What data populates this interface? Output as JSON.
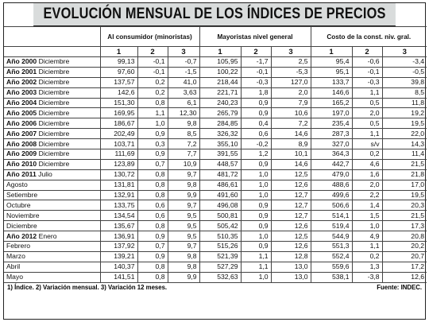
{
  "title": "EVOLUCIÓN MENSUAL DE LOS ÍNDICES DE PRECIOS",
  "groups": [
    "Al consumidor (minoristas)",
    "Mayoristas nivel general",
    "Costo de la const. niv. gral."
  ],
  "subheaders": [
    "1",
    "2",
    "3",
    "1",
    "2",
    "3",
    "1",
    "2",
    "3"
  ],
  "rows": [
    {
      "year": "Año 2000",
      "period": "Diciembre",
      "values": [
        "99,13",
        "-0,1",
        "-0,7",
        "105,95",
        "-1,7",
        "2,5",
        "95,4",
        "-0,6",
        "-3,4"
      ]
    },
    {
      "year": "Año 2001",
      "period": "Diciembre",
      "values": [
        "97,60",
        "-0,1",
        "-1,5",
        "100,22",
        "-0,1",
        "-5,3",
        "95,1",
        "-0,1",
        "-0,5"
      ]
    },
    {
      "year": "Año 2002",
      "period": "Diciembre",
      "values": [
        "137,57",
        "0,2",
        "41,0",
        "218,44",
        "-0,3",
        "127,0",
        "133,7",
        "-0,3",
        "39,8"
      ]
    },
    {
      "year": "Año 2003",
      "period": "Diciembre",
      "values": [
        "142,6",
        "0,2",
        "3,63",
        "221,71",
        "1,8",
        "2,0",
        "146,6",
        "1,1",
        "8,5"
      ]
    },
    {
      "year": "Año 2004",
      "period": "Diciembre",
      "values": [
        "151,30",
        "0,8",
        "6,1",
        "240,23",
        "0,9",
        "7,9",
        "165,2",
        "0,5",
        "11,8"
      ]
    },
    {
      "year": "Año 2005",
      "period": "Diciembre",
      "values": [
        "169,95",
        "1,1",
        "12,30",
        "265,79",
        "0,9",
        "10,6",
        "197,0",
        "2,0",
        "19,2"
      ]
    },
    {
      "year": "Año 2006",
      "period": "Diciembre",
      "values": [
        "186,67",
        "1,0",
        "9,8",
        "284,85",
        "0,4",
        "7,2",
        "235,4",
        "0,5",
        "19,5"
      ]
    },
    {
      "year": "Año 2007",
      "period": "Diciembre",
      "values": [
        "202,49",
        "0,9",
        "8,5",
        "326,32",
        "0,6",
        "14,6",
        "287,3",
        "1,1",
        "22,0"
      ]
    },
    {
      "year": "Año 2008",
      "period": "Diciembre",
      "values": [
        "103,71",
        "0,3",
        "7,2",
        "355,10",
        "-0,2",
        "8,9",
        "327,0",
        "s/v",
        "14,3"
      ]
    },
    {
      "year": "Año 2009",
      "period": "Diciembre",
      "values": [
        "111,69",
        "0,9",
        "7,7",
        "391,55",
        "1,2",
        "10,1",
        "364,3",
        "0,2",
        "11,4"
      ]
    },
    {
      "year": "Año 2010",
      "period": "Diciembre",
      "values": [
        "123,89",
        "0,7",
        "10,9",
        "448,57",
        "0,9",
        "14,6",
        "442,7",
        "4,6",
        "21,5"
      ]
    },
    {
      "year": "Año 2011",
      "period": "Julio",
      "values": [
        "130,72",
        "0,8",
        "9,7",
        "481,72",
        "1,0",
        "12,5",
        "479,0",
        "1,6",
        "21,8"
      ]
    },
    {
      "year": "",
      "period": "Agosto",
      "values": [
        "131,81",
        "0,8",
        "9,8",
        "486,61",
        "1,0",
        "12,6",
        "488,6",
        "2,0",
        "17,0"
      ]
    },
    {
      "year": "",
      "period": "Setiembre",
      "values": [
        "132,91",
        "0,8",
        "9,9",
        "491,60",
        "1,0",
        "12,7",
        "499,6",
        "2,2",
        "19,5"
      ]
    },
    {
      "year": "",
      "period": "Octubre",
      "values": [
        "133,75",
        "0,6",
        "9,7",
        "496,08",
        "0,9",
        "12,7",
        "506,6",
        "1,4",
        "20,3"
      ]
    },
    {
      "year": "",
      "period": "Noviembre",
      "values": [
        "134,54",
        "0,6",
        "9,5",
        "500,81",
        "0,9",
        "12,7",
        "514,1",
        "1,5",
        "21,5"
      ]
    },
    {
      "year": "",
      "period": "Diciembre",
      "values": [
        "135,67",
        "0,8",
        "9,5",
        "505,42",
        "0,9",
        "12,6",
        "519,4",
        "1,0",
        "17,3"
      ]
    },
    {
      "year": "Año 2012",
      "period": "Enero",
      "values": [
        "136,91",
        "0,9",
        "9,5",
        "510,35",
        "1,0",
        "12,5",
        "544,9",
        "4,9",
        "20,8"
      ]
    },
    {
      "year": "",
      "period": "Febrero",
      "values": [
        "137,92",
        "0,7",
        "9,7",
        "515,26",
        "0,9",
        "12,6",
        "551,3",
        "1,1",
        "20,2"
      ]
    },
    {
      "year": "",
      "period": "Marzo",
      "values": [
        "139,21",
        "0,9",
        "9,8",
        "521,39",
        "1,1",
        "12,8",
        "552,4",
        "0,2",
        "20,7"
      ]
    },
    {
      "year": "",
      "period": "Abril",
      "values": [
        "140,37",
        "0,8",
        "9,8",
        "527,29",
        "1,1",
        "13,0",
        "559,6",
        "1,3",
        "17,2"
      ]
    },
    {
      "year": "",
      "period": "Mayo",
      "values": [
        "141,51",
        "0,8",
        "9,9",
        "532,63",
        "1,0",
        "13,0",
        "538,1",
        "-3,8",
        "12,6"
      ]
    }
  ],
  "footnote": "1) Índice. 2) Variación mensual. 3) Variación 12 meses.",
  "source": "Fuente: INDEC."
}
